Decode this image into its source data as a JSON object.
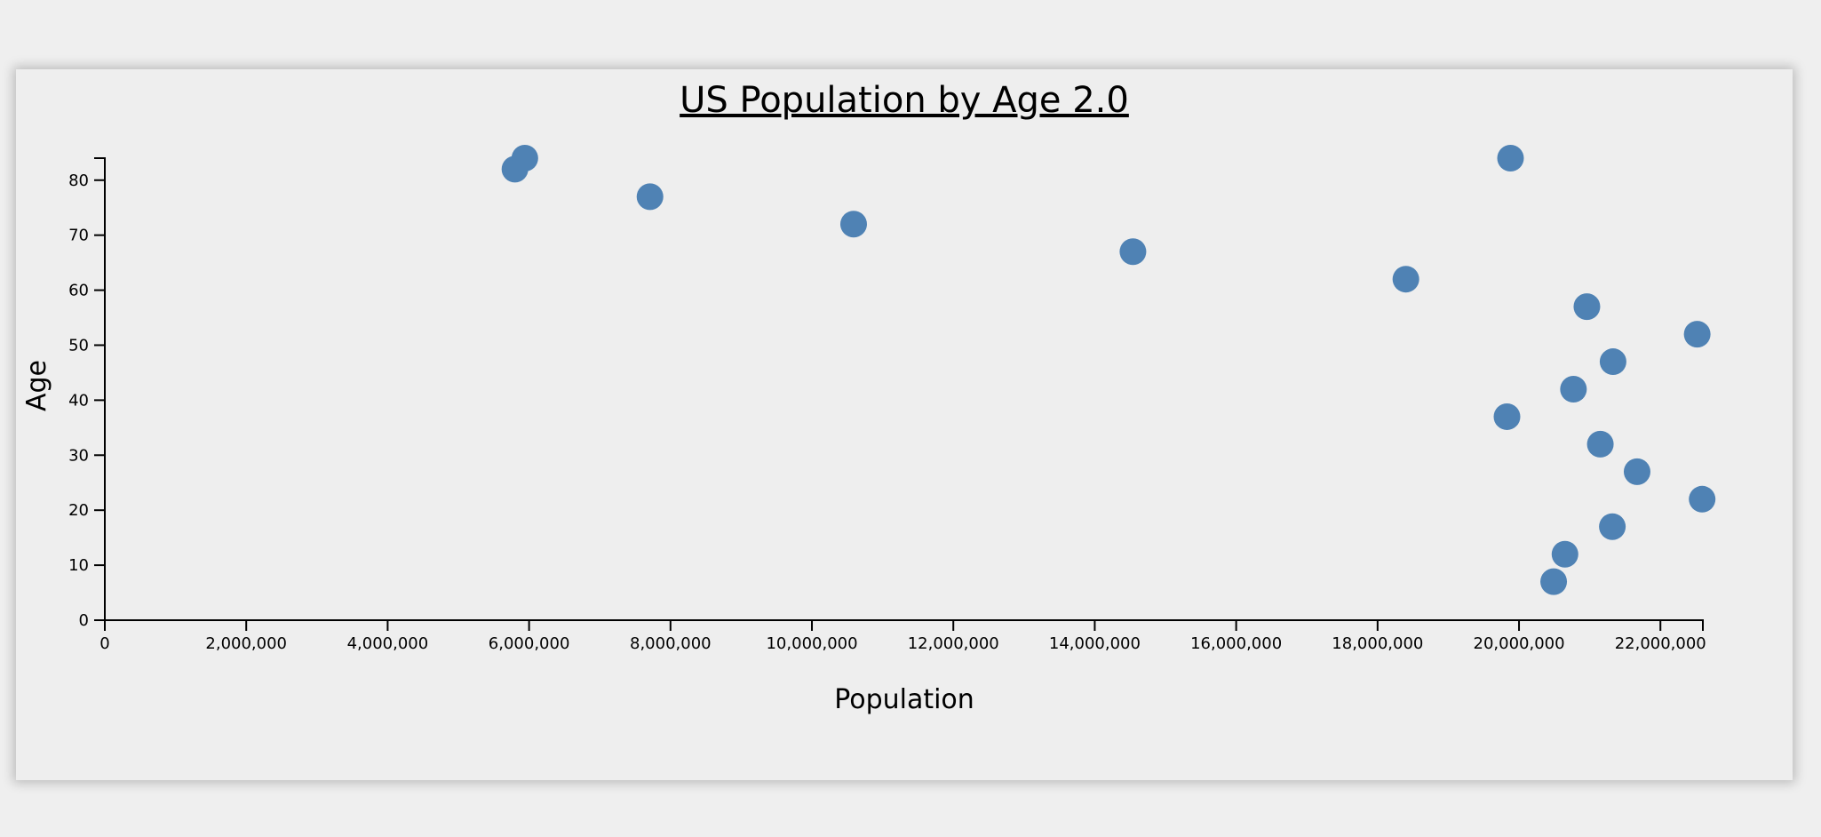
{
  "chart_data": {
    "type": "scatter",
    "title": "US Population by Age 2.0",
    "xlabel": "Population",
    "ylabel": "Age",
    "xlim": [
      0,
      22600000
    ],
    "ylim": [
      0,
      84
    ],
    "x_ticks": [
      0,
      2000000,
      4000000,
      6000000,
      8000000,
      10000000,
      12000000,
      14000000,
      16000000,
      18000000,
      20000000,
      22000000
    ],
    "x_tick_labels": [
      "0",
      "2,000,000",
      "4,000,000",
      "6,000,000",
      "8,000,000",
      "10,000,000",
      "12,000,000",
      "14,000,000",
      "16,000,000",
      "18,000,000",
      "20,000,000",
      "22,000,000"
    ],
    "y_ticks": [
      0,
      10,
      20,
      30,
      40,
      50,
      60,
      70,
      80
    ],
    "y_tick_labels": [
      "0",
      "10",
      "20",
      "30",
      "40",
      "50",
      "60",
      "70",
      "80"
    ],
    "grid": false,
    "point_color": "#4f82b4",
    "points": [
      {
        "x": 20490000,
        "y": 7
      },
      {
        "x": 20650000,
        "y": 12
      },
      {
        "x": 21320000,
        "y": 17
      },
      {
        "x": 22590000,
        "y": 22
      },
      {
        "x": 21670000,
        "y": 27
      },
      {
        "x": 21150000,
        "y": 32
      },
      {
        "x": 19830000,
        "y": 37
      },
      {
        "x": 20770000,
        "y": 42
      },
      {
        "x": 21330000,
        "y": 47
      },
      {
        "x": 22520000,
        "y": 52
      },
      {
        "x": 20960000,
        "y": 57
      },
      {
        "x": 18400000,
        "y": 62
      },
      {
        "x": 14540000,
        "y": 67
      },
      {
        "x": 10590000,
        "y": 72
      },
      {
        "x": 7710000,
        "y": 77
      },
      {
        "x": 5800000,
        "y": 82
      },
      {
        "x": 5940000,
        "y": 84
      },
      {
        "x": 19880000,
        "y": 84
      }
    ]
  }
}
